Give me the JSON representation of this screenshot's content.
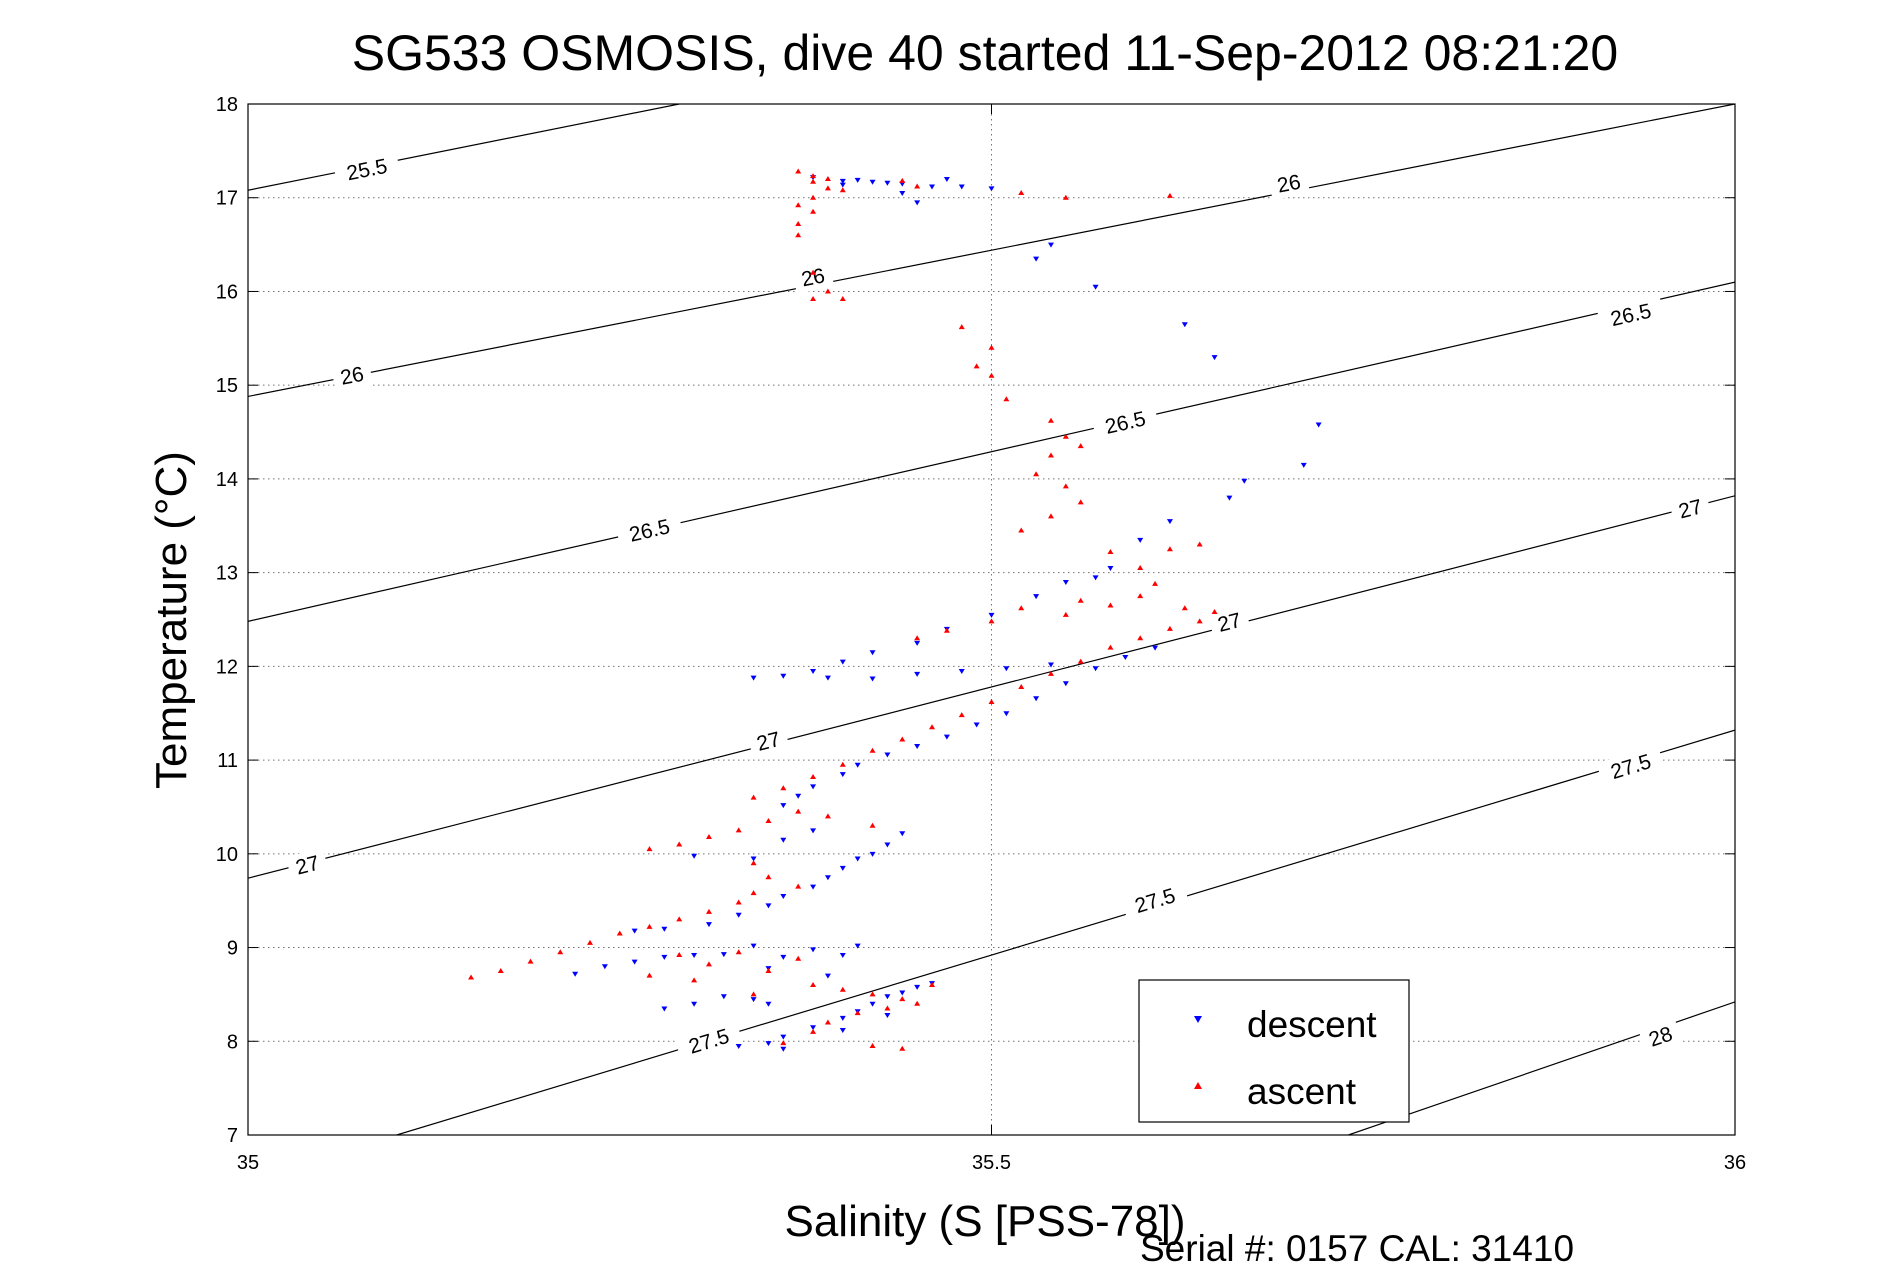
{
  "chart_data": {
    "type": "scatter",
    "title": "SG533 OSMOSIS, dive 40 started 11-Sep-2012 08:21:20",
    "xlabel": "Salinity (S [PSS-78])",
    "ylabel": "Temperature (°C)",
    "xlim": [
      35,
      36
    ],
    "ylim": [
      7,
      18
    ],
    "x_ticks": [
      "35",
      "35.5",
      "36"
    ],
    "y_ticks": [
      "7",
      "8",
      "9",
      "10",
      "11",
      "12",
      "13",
      "14",
      "15",
      "16",
      "17",
      "18"
    ],
    "grid": true,
    "legend_position": "bottom-right",
    "footer": "Serial #: 0157  CAL: 31410",
    "density_contours": [
      {
        "label": "25.5",
        "points": [
          [
            35.0,
            17.08
          ],
          [
            35.29,
            18.0
          ]
        ],
        "label_positions": [
          [
            35.08,
            17.3
          ]
        ]
      },
      {
        "label": "26",
        "points": [
          [
            35.0,
            14.88
          ],
          [
            36.0,
            18.0
          ]
        ],
        "label_positions": [
          [
            35.07,
            15.1
          ],
          [
            35.38,
            16.15
          ],
          [
            35.7,
            17.15
          ]
        ]
      },
      {
        "label": "26.5",
        "points": [
          [
            35.0,
            12.48
          ],
          [
            36.0,
            16.1
          ]
        ],
        "label_positions": [
          [
            35.27,
            13.45
          ],
          [
            35.59,
            14.6
          ],
          [
            35.93,
            15.75
          ]
        ]
      },
      {
        "label": "27",
        "points": [
          [
            35.0,
            9.74
          ],
          [
            36.0,
            13.82
          ]
        ],
        "label_positions": [
          [
            35.04,
            9.88
          ],
          [
            35.35,
            11.2
          ],
          [
            35.66,
            12.47
          ],
          [
            35.97,
            13.68
          ]
        ]
      },
      {
        "label": "27.5",
        "points": [
          [
            35.1,
            7.0
          ],
          [
            36.0,
            11.32
          ]
        ],
        "label_positions": [
          [
            35.31,
            8.0
          ],
          [
            35.61,
            9.5
          ],
          [
            35.93,
            10.93
          ]
        ]
      },
      {
        "label": "28",
        "points": [
          [
            35.74,
            7.0
          ],
          [
            36.0,
            8.42
          ]
        ],
        "label_positions": [
          [
            35.95,
            8.05
          ]
        ]
      }
    ],
    "series": [
      {
        "name": "descent",
        "color": "#0000ff",
        "marker": "triangle-down",
        "points": [
          [
            35.38,
            17.22
          ],
          [
            35.4,
            17.18
          ],
          [
            35.42,
            17.17
          ],
          [
            35.43,
            17.16
          ],
          [
            35.44,
            17.15
          ],
          [
            35.46,
            17.12
          ],
          [
            35.48,
            17.12
          ],
          [
            35.5,
            17.1
          ],
          [
            35.47,
            17.2
          ],
          [
            35.41,
            17.19
          ],
          [
            35.4,
            17.14
          ],
          [
            35.44,
            17.05
          ],
          [
            35.45,
            16.95
          ],
          [
            35.53,
            16.35
          ],
          [
            35.54,
            16.5
          ],
          [
            35.57,
            16.05
          ],
          [
            35.63,
            15.65
          ],
          [
            35.65,
            15.3
          ],
          [
            35.72,
            14.58
          ],
          [
            35.71,
            14.15
          ],
          [
            35.67,
            13.98
          ],
          [
            35.66,
            13.8
          ],
          [
            35.62,
            13.55
          ],
          [
            35.6,
            13.35
          ],
          [
            35.58,
            13.05
          ],
          [
            35.57,
            12.95
          ],
          [
            35.55,
            12.9
          ],
          [
            35.53,
            12.75
          ],
          [
            35.5,
            12.55
          ],
          [
            35.47,
            12.4
          ],
          [
            35.45,
            12.25
          ],
          [
            35.42,
            12.15
          ],
          [
            35.4,
            12.05
          ],
          [
            35.38,
            11.95
          ],
          [
            35.36,
            11.9
          ],
          [
            35.34,
            11.88
          ],
          [
            35.45,
            11.92
          ],
          [
            35.48,
            11.95
          ],
          [
            35.51,
            11.98
          ],
          [
            35.54,
            12.02
          ],
          [
            35.39,
            11.88
          ],
          [
            35.42,
            11.87
          ],
          [
            35.61,
            12.2
          ],
          [
            35.59,
            12.1
          ],
          [
            35.57,
            11.98
          ],
          [
            35.55,
            11.82
          ],
          [
            35.53,
            11.66
          ],
          [
            35.51,
            11.5
          ],
          [
            35.49,
            11.38
          ],
          [
            35.47,
            11.25
          ],
          [
            35.45,
            11.15
          ],
          [
            35.43,
            11.06
          ],
          [
            35.41,
            10.95
          ],
          [
            35.4,
            10.85
          ],
          [
            35.38,
            10.72
          ],
          [
            35.37,
            10.62
          ],
          [
            35.36,
            10.52
          ],
          [
            35.44,
            10.22
          ],
          [
            35.43,
            10.1
          ],
          [
            35.42,
            10.0
          ],
          [
            35.41,
            9.95
          ],
          [
            35.4,
            9.85
          ],
          [
            35.39,
            9.75
          ],
          [
            35.38,
            9.65
          ],
          [
            35.36,
            9.55
          ],
          [
            35.34,
            9.95
          ],
          [
            35.36,
            10.15
          ],
          [
            35.3,
            9.98
          ],
          [
            35.38,
            10.25
          ],
          [
            35.35,
            9.45
          ],
          [
            35.33,
            9.35
          ],
          [
            35.31,
            9.25
          ],
          [
            35.28,
            9.2
          ],
          [
            35.26,
            9.18
          ],
          [
            35.34,
            9.02
          ],
          [
            35.38,
            8.98
          ],
          [
            35.41,
            9.02
          ],
          [
            35.4,
            8.92
          ],
          [
            35.36,
            8.9
          ],
          [
            35.32,
            8.93
          ],
          [
            35.3,
            8.92
          ],
          [
            35.28,
            8.9
          ],
          [
            35.26,
            8.85
          ],
          [
            35.24,
            8.8
          ],
          [
            35.22,
            8.72
          ],
          [
            35.35,
            8.78
          ],
          [
            35.39,
            8.7
          ],
          [
            35.46,
            8.62
          ],
          [
            35.45,
            8.58
          ],
          [
            35.44,
            8.52
          ],
          [
            35.43,
            8.48
          ],
          [
            35.42,
            8.4
          ],
          [
            35.41,
            8.32
          ],
          [
            35.4,
            8.25
          ],
          [
            35.38,
            8.15
          ],
          [
            35.36,
            8.05
          ],
          [
            35.35,
            7.98
          ],
          [
            35.33,
            7.95
          ],
          [
            35.34,
            8.45
          ],
          [
            35.32,
            8.48
          ],
          [
            35.3,
            8.4
          ],
          [
            35.28,
            8.35
          ],
          [
            35.35,
            8.4
          ],
          [
            35.43,
            8.28
          ],
          [
            35.4,
            8.12
          ],
          [
            35.36,
            7.92
          ]
        ]
      },
      {
        "name": "ascent",
        "color": "#ff0000",
        "marker": "triangle-up",
        "points": [
          [
            35.37,
            17.28
          ],
          [
            35.38,
            17.23
          ],
          [
            35.39,
            17.2
          ],
          [
            35.38,
            17.17
          ],
          [
            35.39,
            17.1
          ],
          [
            35.4,
            17.08
          ],
          [
            35.38,
            17.0
          ],
          [
            35.37,
            16.92
          ],
          [
            35.38,
            16.85
          ],
          [
            35.37,
            16.72
          ],
          [
            35.37,
            16.6
          ],
          [
            35.45,
            17.12
          ],
          [
            35.44,
            17.18
          ],
          [
            35.52,
            17.05
          ],
          [
            35.55,
            17.0
          ],
          [
            35.62,
            17.02
          ],
          [
            35.38,
            16.2
          ],
          [
            35.39,
            16.0
          ],
          [
            35.38,
            15.92
          ],
          [
            35.4,
            15.92
          ],
          [
            35.48,
            15.62
          ],
          [
            35.5,
            15.4
          ],
          [
            35.49,
            15.2
          ],
          [
            35.5,
            15.1
          ],
          [
            35.51,
            14.85
          ],
          [
            35.54,
            14.62
          ],
          [
            35.55,
            14.45
          ],
          [
            35.56,
            14.35
          ],
          [
            35.54,
            14.25
          ],
          [
            35.53,
            14.05
          ],
          [
            35.55,
            13.92
          ],
          [
            35.56,
            13.75
          ],
          [
            35.54,
            13.6
          ],
          [
            35.52,
            13.45
          ],
          [
            35.58,
            13.22
          ],
          [
            35.6,
            13.05
          ],
          [
            35.62,
            13.25
          ],
          [
            35.64,
            13.3
          ],
          [
            35.61,
            12.88
          ],
          [
            35.6,
            12.75
          ],
          [
            35.58,
            12.65
          ],
          [
            35.63,
            12.62
          ],
          [
            35.65,
            12.58
          ],
          [
            35.64,
            12.48
          ],
          [
            35.62,
            12.4
          ],
          [
            35.6,
            12.3
          ],
          [
            35.58,
            12.2
          ],
          [
            35.56,
            12.05
          ],
          [
            35.54,
            11.92
          ],
          [
            35.52,
            11.78
          ],
          [
            35.5,
            11.62
          ],
          [
            35.48,
            11.48
          ],
          [
            35.46,
            11.35
          ],
          [
            35.44,
            11.22
          ],
          [
            35.42,
            11.1
          ],
          [
            35.4,
            10.95
          ],
          [
            35.38,
            10.82
          ],
          [
            35.36,
            10.7
          ],
          [
            35.34,
            10.6
          ],
          [
            35.52,
            12.62
          ],
          [
            35.5,
            12.48
          ],
          [
            35.47,
            12.38
          ],
          [
            35.45,
            12.3
          ],
          [
            35.56,
            12.7
          ],
          [
            35.55,
            12.55
          ],
          [
            35.37,
            10.45
          ],
          [
            35.35,
            10.35
          ],
          [
            35.33,
            10.25
          ],
          [
            35.31,
            10.18
          ],
          [
            35.29,
            10.1
          ],
          [
            35.27,
            10.05
          ],
          [
            35.39,
            10.4
          ],
          [
            35.42,
            10.3
          ],
          [
            35.34,
            9.9
          ],
          [
            35.35,
            9.75
          ],
          [
            35.37,
            9.65
          ],
          [
            35.34,
            9.58
          ],
          [
            35.33,
            9.48
          ],
          [
            35.31,
            9.38
          ],
          [
            35.29,
            9.3
          ],
          [
            35.27,
            9.22
          ],
          [
            35.25,
            9.15
          ],
          [
            35.23,
            9.05
          ],
          [
            35.21,
            8.95
          ],
          [
            35.19,
            8.85
          ],
          [
            35.17,
            8.75
          ],
          [
            35.15,
            8.68
          ],
          [
            35.29,
            8.92
          ],
          [
            35.33,
            8.95
          ],
          [
            35.37,
            8.88
          ],
          [
            35.31,
            8.82
          ],
          [
            35.35,
            8.75
          ],
          [
            35.38,
            8.6
          ],
          [
            35.4,
            8.55
          ],
          [
            35.42,
            8.5
          ],
          [
            35.44,
            8.45
          ],
          [
            35.45,
            8.4
          ],
          [
            35.43,
            8.35
          ],
          [
            35.41,
            8.3
          ],
          [
            35.39,
            8.2
          ],
          [
            35.38,
            8.1
          ],
          [
            35.36,
            7.98
          ],
          [
            35.42,
            7.95
          ],
          [
            35.44,
            7.92
          ],
          [
            35.46,
            8.6
          ],
          [
            35.3,
            8.65
          ],
          [
            35.27,
            8.7
          ],
          [
            35.34,
            8.5
          ]
        ]
      }
    ]
  }
}
